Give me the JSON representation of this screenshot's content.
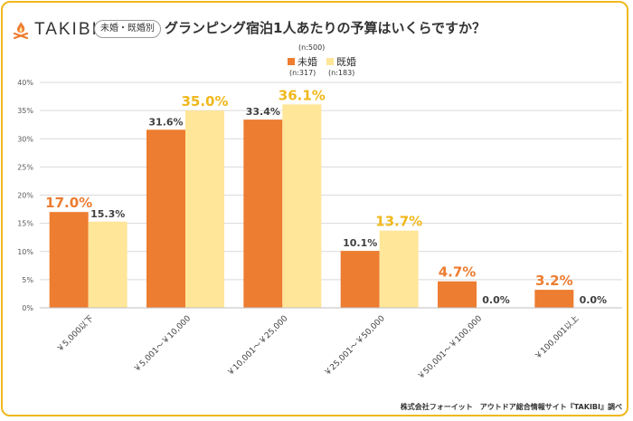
{
  "brand": {
    "logo_text": "TAKIBI"
  },
  "badge": "未婚・既婚別",
  "title": "グランピング宿泊1人あたりの予算はいくらですか？",
  "sample_total": "(n:500)",
  "footer": "株式会社フォーイット　アウトドア総合情報サイト『TAKIBI』調べ",
  "colors": {
    "unmarried": "#ed7d31",
    "married": "#ffe699",
    "highlight": "#f0b81c",
    "frame": "#f0b81c"
  },
  "chart_data": {
    "type": "bar",
    "title": "グランピング宿泊1人あたりの予算はいくらですか？",
    "categories": [
      "￥5,000以下",
      "￥5,001～￥10,000",
      "￥10,001～￥25,000",
      "￥25,001～￥50,000",
      "￥50,001～￥100,000",
      "￥100,001以上"
    ],
    "series": [
      {
        "name": "未婚",
        "n": "(n:317)",
        "values": [
          17.0,
          31.6,
          33.4,
          10.1,
          4.7,
          3.2
        ],
        "labels": [
          "17.0%",
          "31.6%",
          "33.4%",
          "10.1%",
          "4.7%",
          "3.2%"
        ],
        "highlight": [
          true,
          false,
          false,
          false,
          true,
          true
        ]
      },
      {
        "name": "既婚",
        "n": "(n:183)",
        "values": [
          15.3,
          35.0,
          36.1,
          13.7,
          0.0,
          0.0
        ],
        "labels": [
          "15.3%",
          "35.0%",
          "36.1%",
          "13.7%",
          "0.0%",
          "0.0%"
        ],
        "highlight": [
          false,
          true,
          true,
          true,
          false,
          false
        ]
      }
    ],
    "yticks": [
      "0%",
      "5%",
      "10%",
      "15%",
      "20%",
      "25%",
      "30%",
      "35%",
      "40%"
    ],
    "ylim": [
      0,
      40
    ],
    "grid": true,
    "legend_position": "top-center"
  }
}
